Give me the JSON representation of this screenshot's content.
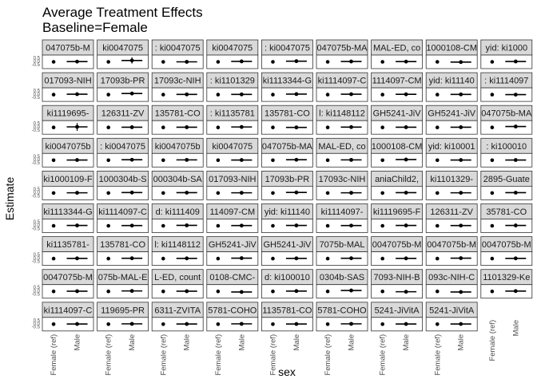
{
  "chart_data": {
    "type": "scatter",
    "title": "Average Treatment Effects",
    "subtitle": "Baseline=Female",
    "xlabel": "sex",
    "ylabel": "Estimate",
    "categories": [
      "Female (ref)",
      "Male"
    ],
    "y_tick_labels": [
      "0.5",
      "0.0",
      "-0.5"
    ],
    "grid": false,
    "facets": [
      {
        "label": "047075b-M",
        "male": {
          "est": 0.02,
          "lo": -0.12,
          "hi": 0.14
        }
      },
      {
        "label": "ki0047075",
        "male": {
          "est": 0.12,
          "lo": -0.15,
          "hi": 0.4
        }
      },
      {
        "label": ": ki0047075",
        "male": {
          "est": 0.0,
          "lo": -0.08,
          "hi": 0.1
        }
      },
      {
        "label": "ki0047075",
        "male": {
          "est": 0.04,
          "lo": -0.06,
          "hi": 0.14
        }
      },
      {
        "label": ": ki0047075",
        "male": {
          "est": 0.06,
          "lo": -0.04,
          "hi": 0.16
        }
      },
      {
        "label": "047075b-MA",
        "male": {
          "est": 0.03,
          "lo": -0.07,
          "hi": 0.12
        }
      },
      {
        "label": "MAL-ED, co",
        "male": {
          "est": 0.02,
          "lo": -0.1,
          "hi": 0.14
        }
      },
      {
        "label": "1000108-CM",
        "male": {
          "est": -0.02,
          "lo": -0.14,
          "hi": 0.1
        }
      },
      {
        "label": "yid: ki1000",
        "male": {
          "est": 0.03,
          "lo": -0.07,
          "hi": 0.13
        }
      },
      {
        "label": "017093-NIH",
        "male": {
          "est": 0.04,
          "lo": -0.1,
          "hi": 0.18
        }
      },
      {
        "label": "17093b-PR",
        "male": {
          "est": 0.1,
          "lo": -0.05,
          "hi": 0.25
        }
      },
      {
        "label": "17093c-NIH",
        "male": {
          "est": 0.02,
          "lo": -0.08,
          "hi": 0.12
        }
      },
      {
        "label": ": ki1101329",
        "male": {
          "est": 0.02,
          "lo": -0.08,
          "hi": 0.12
        }
      },
      {
        "label": "ki1113344-G",
        "male": {
          "est": 0.05,
          "lo": -0.05,
          "hi": 0.15
        }
      },
      {
        "label": "ki1114097-C",
        "male": {
          "est": 0.04,
          "lo": -0.08,
          "hi": 0.16
        }
      },
      {
        "label": "1114097-CM",
        "male": {
          "est": 0.03,
          "lo": -0.09,
          "hi": 0.15
        }
      },
      {
        "label": "yid: ki11140",
        "male": {
          "est": 0.02,
          "lo": -0.08,
          "hi": 0.12
        }
      },
      {
        "label": ": ki1114097",
        "male": {
          "est": 0.0,
          "lo": -0.1,
          "hi": 0.1
        }
      },
      {
        "label": "ki1119695-",
        "male": {
          "est": 0.05,
          "lo": -0.3,
          "hi": 0.38
        }
      },
      {
        "label": "126311-ZV",
        "male": {
          "est": 0.02,
          "lo": -0.08,
          "hi": 0.12
        }
      },
      {
        "label": "135781-CO",
        "male": {
          "est": 0.02,
          "lo": -0.08,
          "hi": 0.12
        }
      },
      {
        "label": ": ki1135781",
        "male": {
          "est": 0.04,
          "lo": -0.08,
          "hi": 0.16
        }
      },
      {
        "label": "135781-CO",
        "male": {
          "est": 0.0,
          "lo": -0.08,
          "hi": 0.08
        }
      },
      {
        "label": "l: ki1148112",
        "male": {
          "est": 0.03,
          "lo": -0.07,
          "hi": 0.13
        }
      },
      {
        "label": "GH5241-JiV",
        "male": {
          "est": 0.02,
          "lo": -0.1,
          "hi": 0.14
        }
      },
      {
        "label": "GH5241-JiV",
        "male": {
          "est": 0.02,
          "lo": -0.12,
          "hi": 0.16
        }
      },
      {
        "label": "047075b-MA",
        "male": {
          "est": 0.08,
          "lo": -0.05,
          "hi": 0.21
        }
      },
      {
        "label": "ki0047075b",
        "male": {
          "est": 0.02,
          "lo": -0.08,
          "hi": 0.12
        }
      },
      {
        "label": ": ki0047075",
        "male": {
          "est": 0.04,
          "lo": -0.06,
          "hi": 0.14
        }
      },
      {
        "label": "ki0047075b",
        "male": {
          "est": 0.03,
          "lo": -0.07,
          "hi": 0.13
        }
      },
      {
        "label": "ki0047075",
        "male": {
          "est": 0.02,
          "lo": -0.08,
          "hi": 0.12
        }
      },
      {
        "label": "047075b-MA",
        "male": {
          "est": 0.04,
          "lo": -0.06,
          "hi": 0.14
        }
      },
      {
        "label": "MAL-ED, co",
        "male": {
          "est": 0.03,
          "lo": -0.09,
          "hi": 0.15
        }
      },
      {
        "label": "1000108-CM",
        "male": {
          "est": 0.06,
          "lo": -0.04,
          "hi": 0.16
        }
      },
      {
        "label": "yid: ki10001",
        "male": {
          "est": 0.02,
          "lo": -0.08,
          "hi": 0.12
        }
      },
      {
        "label": ": ki100010",
        "male": {
          "est": 0.02,
          "lo": -0.08,
          "hi": 0.12
        }
      },
      {
        "label": "ki1000109-F",
        "male": {
          "est": 0.02,
          "lo": -0.08,
          "hi": 0.12
        }
      },
      {
        "label": "1000304b-S",
        "male": {
          "est": 0.04,
          "lo": -0.06,
          "hi": 0.14
        }
      },
      {
        "label": "000304b-SA",
        "male": {
          "est": 0.03,
          "lo": -0.07,
          "hi": 0.13
        }
      },
      {
        "label": "017093-NIH",
        "male": {
          "est": 0.02,
          "lo": -0.08,
          "hi": 0.12
        }
      },
      {
        "label": "17093b-PR",
        "male": {
          "est": 0.05,
          "lo": -0.05,
          "hi": 0.15
        }
      },
      {
        "label": "17093c-NIH",
        "male": {
          "est": 0.02,
          "lo": -0.08,
          "hi": 0.12
        }
      },
      {
        "label": "aniaChild2,",
        "male": {
          "est": 0.03,
          "lo": -0.07,
          "hi": 0.13
        }
      },
      {
        "label": "ki1101329-",
        "male": {
          "est": 0.02,
          "lo": -0.08,
          "hi": 0.12
        }
      },
      {
        "label": "2895-Guate",
        "male": {
          "est": 0.03,
          "lo": -0.1,
          "hi": 0.16
        }
      },
      {
        "label": "ki1113344-G",
        "male": {
          "est": 0.03,
          "lo": -0.07,
          "hi": 0.13
        }
      },
      {
        "label": "ki1114097-C",
        "male": {
          "est": 0.02,
          "lo": -0.08,
          "hi": 0.12
        }
      },
      {
        "label": "d: ki111409",
        "male": {
          "est": 0.04,
          "lo": -0.06,
          "hi": 0.14
        }
      },
      {
        "label": "114097-CM",
        "male": {
          "est": 0.02,
          "lo": -0.08,
          "hi": 0.12
        }
      },
      {
        "label": "yid: ki11140",
        "male": {
          "est": 0.03,
          "lo": -0.07,
          "hi": 0.13
        }
      },
      {
        "label": "ki1114097-",
        "male": {
          "est": 0.02,
          "lo": -0.08,
          "hi": 0.12
        }
      },
      {
        "label": "ki1119695-F",
        "male": {
          "est": 0.03,
          "lo": -0.07,
          "hi": 0.13
        }
      },
      {
        "label": "126311-ZV",
        "male": {
          "est": 0.02,
          "lo": -0.08,
          "hi": 0.12
        }
      },
      {
        "label": "35781-CO",
        "male": {
          "est": 0.03,
          "lo": -0.09,
          "hi": 0.15
        }
      },
      {
        "label": "ki1135781-",
        "male": {
          "est": 0.02,
          "lo": -0.08,
          "hi": 0.12
        }
      },
      {
        "label": "135781-CO",
        "male": {
          "est": 0.03,
          "lo": -0.07,
          "hi": 0.13
        }
      },
      {
        "label": "l: ki1148112",
        "male": {
          "est": 0.02,
          "lo": -0.08,
          "hi": 0.12
        }
      },
      {
        "label": "GH5241-JiV",
        "male": {
          "est": 0.04,
          "lo": -0.06,
          "hi": 0.14
        }
      },
      {
        "label": "GH5241-JiV",
        "male": {
          "est": 0.02,
          "lo": -0.08,
          "hi": 0.12
        }
      },
      {
        "label": "7075b-MAL",
        "male": {
          "est": 0.03,
          "lo": -0.07,
          "hi": 0.13
        }
      },
      {
        "label": "0047075b-M",
        "male": {
          "est": 0.02,
          "lo": -0.08,
          "hi": 0.12
        }
      },
      {
        "label": "0047075b-M",
        "male": {
          "est": 0.04,
          "lo": -0.06,
          "hi": 0.14
        }
      },
      {
        "label": "0047075b-M",
        "male": {
          "est": 0.02,
          "lo": -0.08,
          "hi": 0.12
        }
      },
      {
        "label": "0047075b-M",
        "male": {
          "est": 0.02,
          "lo": -0.08,
          "hi": 0.12
        }
      },
      {
        "label": "075b-MAL-E",
        "male": {
          "est": 0.04,
          "lo": -0.06,
          "hi": 0.14
        }
      },
      {
        "label": "L-ED, count",
        "male": {
          "est": 0.02,
          "lo": -0.08,
          "hi": 0.12
        }
      },
      {
        "label": "0108-CMC-",
        "male": {
          "est": -0.05,
          "lo": -0.2,
          "hi": 0.1
        }
      },
      {
        "label": "d: ki100010",
        "male": {
          "est": 0.03,
          "lo": -0.07,
          "hi": 0.13
        }
      },
      {
        "label": "0304b-SAS",
        "male": {
          "est": 0.08,
          "lo": -0.04,
          "hi": 0.2
        }
      },
      {
        "label": "7093-NIH-B",
        "male": {
          "est": -0.03,
          "lo": -0.13,
          "hi": 0.07
        }
      },
      {
        "label": "093c-NIH-C",
        "male": {
          "est": -0.05,
          "lo": -0.15,
          "hi": 0.05
        }
      },
      {
        "label": "1101329-Ke",
        "male": {
          "est": 0.03,
          "lo": -0.07,
          "hi": 0.13
        }
      },
      {
        "label": "ki1114097-C",
        "male": {
          "est": 0.02,
          "lo": -0.08,
          "hi": 0.12
        }
      },
      {
        "label": "119695-PR",
        "male": {
          "est": 0.03,
          "lo": -0.07,
          "hi": 0.13
        }
      },
      {
        "label": "6311-ZVITA",
        "male": {
          "est": 0.02,
          "lo": -0.08,
          "hi": 0.12
        }
      },
      {
        "label": "5781-COHO",
        "male": {
          "est": 0.03,
          "lo": -0.07,
          "hi": 0.13
        }
      },
      {
        "label": "1135781-CO",
        "male": {
          "est": 0.02,
          "lo": -0.08,
          "hi": 0.12
        }
      },
      {
        "label": "5781-COHO",
        "male": {
          "est": 0.03,
          "lo": -0.07,
          "hi": 0.13
        }
      },
      {
        "label": "5241-JiVitA",
        "male": {
          "est": 0.02,
          "lo": -0.08,
          "hi": 0.12
        }
      },
      {
        "label": "5241-JiVitA",
        "male": {
          "est": 0.02,
          "lo": -0.08,
          "hi": 0.12
        }
      }
    ]
  }
}
